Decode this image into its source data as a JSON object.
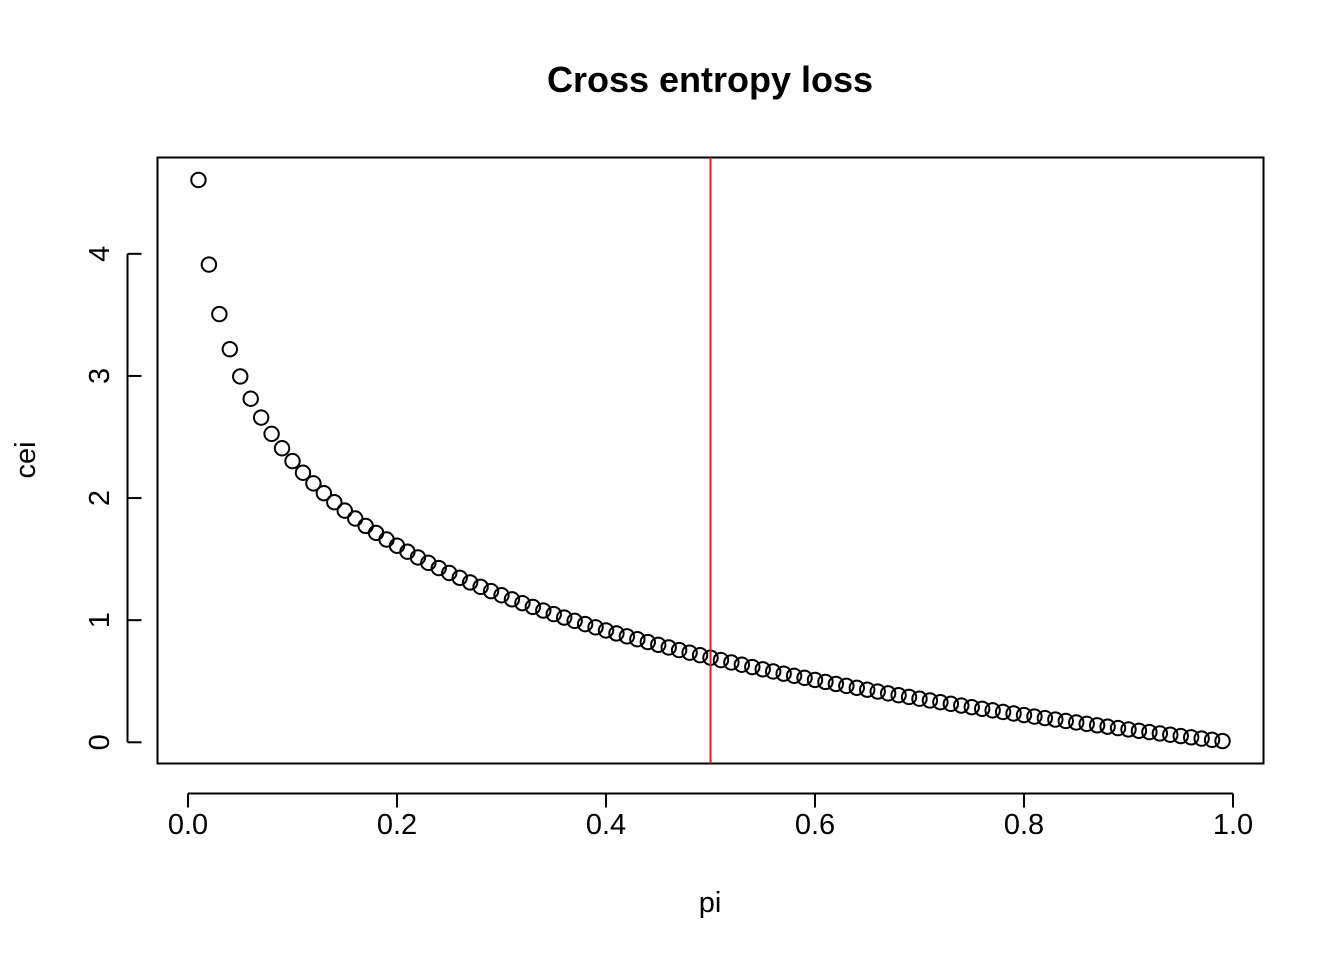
{
  "chart_data": {
    "type": "scatter",
    "title": "Cross entropy loss",
    "xlabel": "pi",
    "ylabel": "cei",
    "xlim": [
      0.01,
      0.99
    ],
    "ylim": [
      0.01005,
      4.60517
    ],
    "x_ticks": [
      0.0,
      0.2,
      0.4,
      0.6,
      0.8,
      1.0
    ],
    "x_tick_labels": [
      "0.0",
      "0.2",
      "0.4",
      "0.6",
      "0.8",
      "1.0"
    ],
    "y_ticks": [
      0,
      1,
      2,
      3,
      4
    ],
    "y_tick_labels": [
      "0",
      "1",
      "2",
      "3",
      "4"
    ],
    "grid": false,
    "marker": "open-circle",
    "marker_color": "#000000",
    "series": [
      {
        "x": [
          0.01,
          0.02,
          0.03,
          0.04,
          0.05,
          0.06,
          0.07,
          0.08,
          0.09,
          0.1,
          0.11,
          0.12,
          0.13,
          0.14,
          0.15,
          0.16,
          0.17,
          0.18,
          0.19,
          0.2,
          0.21,
          0.22,
          0.23,
          0.24,
          0.25,
          0.26,
          0.27,
          0.28,
          0.29,
          0.3,
          0.31,
          0.32,
          0.33,
          0.34,
          0.35,
          0.36,
          0.37,
          0.38,
          0.39,
          0.4,
          0.41,
          0.42,
          0.43,
          0.44,
          0.45,
          0.46,
          0.47,
          0.48,
          0.49,
          0.5,
          0.51,
          0.52,
          0.53,
          0.54,
          0.55,
          0.56,
          0.57,
          0.58,
          0.59,
          0.6,
          0.61,
          0.62,
          0.63,
          0.64,
          0.65,
          0.66,
          0.67,
          0.68,
          0.69,
          0.7,
          0.71,
          0.72,
          0.73,
          0.74,
          0.75,
          0.76,
          0.77,
          0.78,
          0.79,
          0.8,
          0.81,
          0.82,
          0.83,
          0.84,
          0.85,
          0.86,
          0.87,
          0.88,
          0.89,
          0.9,
          0.91,
          0.92,
          0.93,
          0.94,
          0.95,
          0.96,
          0.97,
          0.98,
          0.99
        ],
        "y": [
          4.6052,
          3.912,
          3.5066,
          3.2189,
          2.9957,
          2.8134,
          2.6593,
          2.5257,
          2.4079,
          2.3026,
          2.2073,
          2.1203,
          2.0402,
          1.9661,
          1.8971,
          1.8326,
          1.772,
          1.7148,
          1.6607,
          1.6094,
          1.5606,
          1.5141,
          1.4697,
          1.4271,
          1.3863,
          1.3471,
          1.3093,
          1.273,
          1.2379,
          1.204,
          1.1712,
          1.1394,
          1.1087,
          1.0788,
          1.0498,
          1.0217,
          0.9943,
          0.9676,
          0.9416,
          0.9163,
          0.8916,
          0.8675,
          0.844,
          0.821,
          0.7985,
          0.7765,
          0.755,
          0.734,
          0.7133,
          0.6931,
          0.6733,
          0.6539,
          0.6349,
          0.6162,
          0.5978,
          0.5798,
          0.5621,
          0.5447,
          0.5276,
          0.5108,
          0.4943,
          0.478,
          0.462,
          0.4463,
          0.4308,
          0.4155,
          0.4005,
          0.3857,
          0.3711,
          0.3567,
          0.3425,
          0.3285,
          0.3147,
          0.3011,
          0.2877,
          0.2744,
          0.2614,
          0.2485,
          0.2357,
          0.2231,
          0.2107,
          0.1985,
          0.1863,
          0.1744,
          0.1625,
          0.1508,
          0.1393,
          0.1278,
          0.1165,
          0.1054,
          0.0943,
          0.0834,
          0.0726,
          0.0619,
          0.0513,
          0.0408,
          0.0305,
          0.0202,
          0.0101
        ]
      }
    ],
    "vline": {
      "x": 0.5,
      "color": "#ee1c25"
    }
  }
}
